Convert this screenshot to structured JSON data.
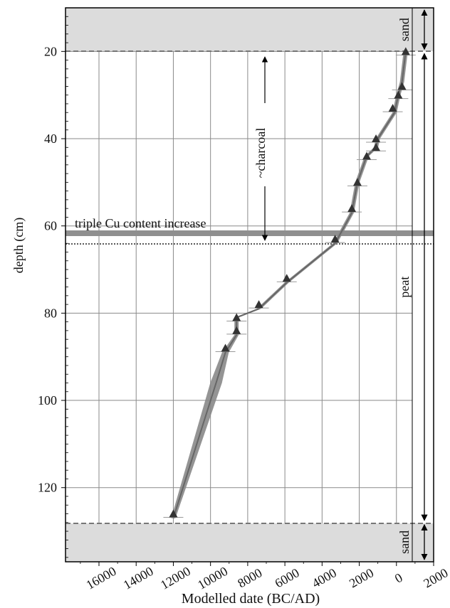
{
  "chart_data": {
    "type": "line",
    "xlabel": "Modelled date (BC/AD)",
    "ylabel": "depth (cm)",
    "xlim": [
      17800,
      -2000
    ],
    "ylim": [
      137,
      10
    ],
    "x_ticks": [
      16000,
      14000,
      12000,
      10000,
      8000,
      6000,
      4000,
      2000,
      0,
      -2000
    ],
    "x_tick_labels": [
      "16000",
      "14000",
      "12000",
      "10000",
      "8000",
      "6000",
      "4000",
      "2000",
      "0",
      "2000"
    ],
    "y_ticks": [
      20,
      40,
      60,
      80,
      100,
      120
    ],
    "y_tick_labels": [
      "20",
      "40",
      "60",
      "80",
      "100",
      "120"
    ],
    "grid": true,
    "series": [
      {
        "values": [
          {
            "x": -500,
            "y": 20
          },
          {
            "x": -300,
            "y": 27
          },
          {
            "x": -100,
            "y": 30
          },
          {
            "x": 100,
            "y": 34
          },
          {
            "x": 1000,
            "y": 40
          },
          {
            "x": 1100,
            "y": 42
          },
          {
            "x": 1600,
            "y": 44
          },
          {
            "x": 2100,
            "y": 50
          },
          {
            "x": 2400,
            "y": 57
          },
          {
            "x": 3300,
            "y": 64
          },
          {
            "x": 5900,
            "y": 73
          },
          {
            "x": 7400,
            "y": 79
          },
          {
            "x": 8600,
            "y": 81
          },
          {
            "x": 8600,
            "y": 85
          },
          {
            "x": 9200,
            "y": 89
          },
          {
            "x": 9700,
            "y": 96
          },
          {
            "x": 12000,
            "y": 127
          }
        ]
      }
    ],
    "dated_samples": [
      {
        "x": -500,
        "y": 20
      },
      {
        "x": -300,
        "y": 28
      },
      {
        "x": -100,
        "y": 30
      },
      {
        "x": 200,
        "y": 33
      },
      {
        "x": 1100,
        "y": 40
      },
      {
        "x": 1100,
        "y": 42
      },
      {
        "x": 1600,
        "y": 44
      },
      {
        "x": 2100,
        "y": 50
      },
      {
        "x": 2400,
        "y": 56
      },
      {
        "x": 3300,
        "y": 63
      },
      {
        "x": 5900,
        "y": 72
      },
      {
        "x": 7400,
        "y": 78
      },
      {
        "x": 8600,
        "y": 81
      },
      {
        "x": 8600,
        "y": 84
      },
      {
        "x": 9200,
        "y": 88
      },
      {
        "x": 12000,
        "y": 126
      }
    ],
    "zones": [
      {
        "label": "sand",
        "top": 10,
        "bottom": 20
      },
      {
        "label": "peat",
        "top": 20,
        "bottom": 128
      },
      {
        "label": "sand",
        "top": 128,
        "bottom": 137
      }
    ],
    "annotations": {
      "cu_label": "triple Cu content increase",
      "cu_depth": 61.5,
      "charcoal_label": "~charcoal",
      "charcoal_top": 20,
      "charcoal_bottom": 64
    }
  }
}
